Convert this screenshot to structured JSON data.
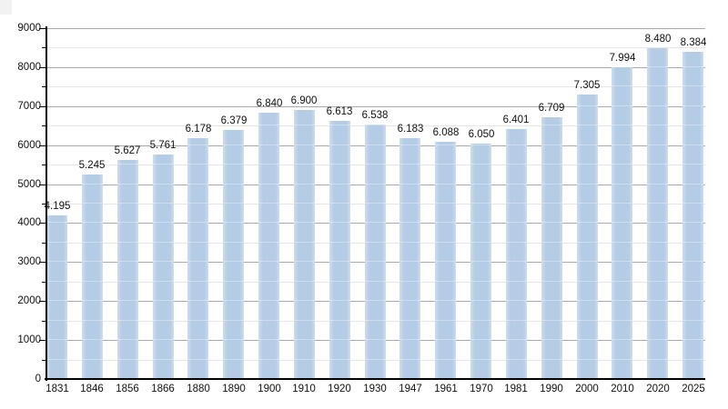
{
  "chart_data": {
    "type": "bar",
    "title": "",
    "xlabel": "",
    "ylabel": "",
    "categories": [
      "1831",
      "1846",
      "1856",
      "1866",
      "1880",
      "1890",
      "1900",
      "1910",
      "1920",
      "1930",
      "1947",
      "1961",
      "1970",
      "1981",
      "1990",
      "2000",
      "2010",
      "2020",
      "2025"
    ],
    "values": [
      4195,
      5245,
      5627,
      5761,
      6178,
      6379,
      6840,
      6900,
      6613,
      6538,
      6183,
      6088,
      6050,
      6401,
      6709,
      7305,
      7994,
      8480,
      8384
    ],
    "value_labels": [
      "4.195",
      "5.245",
      "5.627",
      "5.761",
      "6.178",
      "6.379",
      "6.840",
      "6.900",
      "6.613",
      "6.538",
      "6.183",
      "6.088",
      "6.050",
      "6.401",
      "6.709",
      "7.305",
      "7.994",
      "8.480",
      "8.384"
    ],
    "ylim": [
      0,
      9000
    ],
    "y_major_ticks": [
      0,
      1000,
      2000,
      3000,
      4000,
      5000,
      6000,
      7000,
      8000,
      9000
    ],
    "y_minor_step": 500,
    "grid": true,
    "legend": false,
    "colors": {
      "bar": "#b4cce5",
      "bar_edge": "#cdddee",
      "grid_major": "#aaaaaa",
      "grid_minor": "#e6e6e6",
      "axis": "#000000",
      "text": "#111111",
      "background": "#ffffff",
      "corner_artifact": "#f2f2f2"
    }
  }
}
